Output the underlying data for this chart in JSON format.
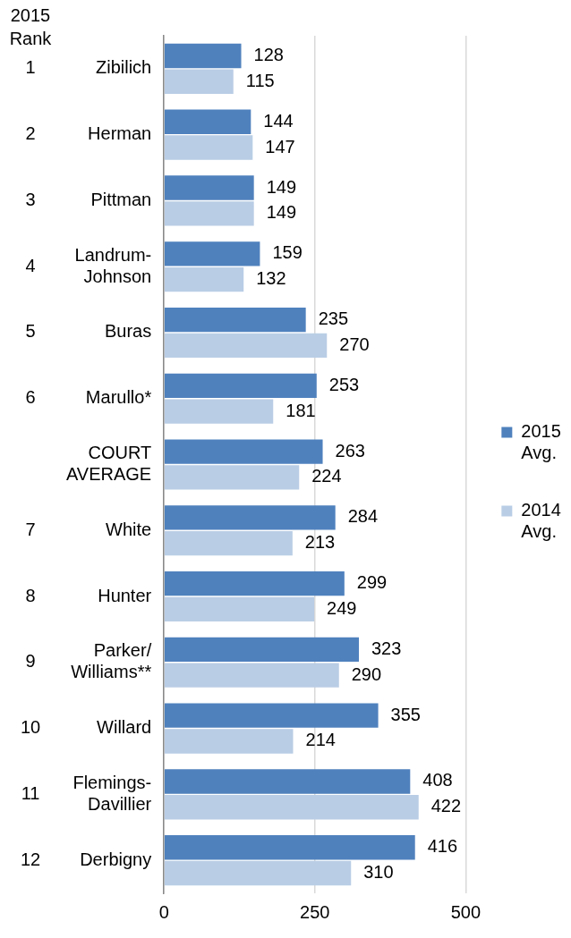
{
  "chart_data": {
    "type": "bar",
    "orientation": "horizontal",
    "categories": [
      "Zibilich",
      "Herman",
      "Pittman",
      "Landrum-Johnson",
      "Buras",
      "Marullo*",
      "COURT AVERAGE",
      "White",
      "Hunter",
      "Parker/Williams**",
      "Willard",
      "Flemings-Davillier",
      "Derbigny"
    ],
    "series": [
      {
        "name": "2015 Avg.",
        "color": "#4f81bd",
        "values": [
          128,
          144,
          149,
          159,
          235,
          253,
          263,
          284,
          299,
          323,
          355,
          408,
          416
        ]
      },
      {
        "name": "2014 Avg.",
        "color": "#b9cde5",
        "values": [
          115,
          147,
          149,
          132,
          270,
          181,
          224,
          213,
          249,
          290,
          214,
          422,
          310
        ]
      }
    ],
    "xlim": [
      0,
      500
    ],
    "xticks": [
      0,
      250,
      500
    ],
    "grid": "x",
    "legend": "right",
    "data_labels": true,
    "annotations": [
      "2015 Rank",
      "1",
      "2",
      "3",
      "4",
      "5",
      "6",
      "7",
      "8",
      "9",
      "10",
      "11",
      "12"
    ]
  }
}
